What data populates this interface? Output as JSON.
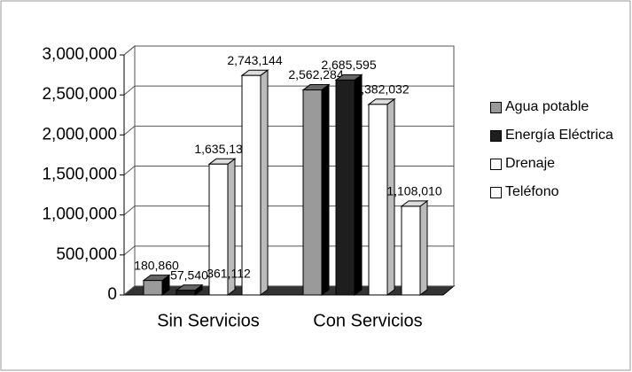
{
  "chart_data": {
    "type": "bar3d",
    "categories": [
      "Sin Servicios",
      "Con Servicios"
    ],
    "series": [
      {
        "name": "Agua potable",
        "color": "#9a9a9a",
        "values": [
          180860,
          2562284
        ],
        "value_labels": [
          "180,860",
          "2,562,284"
        ]
      },
      {
        "name": "Energía Eléctrica",
        "color": "#1e1e1e",
        "values": [
          57540,
          2685595
        ],
        "value_labels": [
          "57,540",
          "2,685,595"
        ]
      },
      {
        "name": "Drenaje",
        "color": "#ffffff",
        "values": [
          1635134,
          2382032
        ],
        "value_labels": [
          "1,635,134",
          "2,382,032"
        ]
      },
      {
        "name": "Teléfono",
        "color": "#ffffff",
        "values": [
          2743144,
          1108010
        ],
        "value_labels": [
          "2,743,144",
          "1,108,010"
        ]
      }
    ],
    "annotations": [
      "361,112"
    ],
    "ylim": [
      0,
      3000000
    ],
    "yticks": [
      0,
      {
        "value": 500000,
        "label": "500,000"
      },
      {
        "value": 1000000,
        "label": "1,000,000"
      },
      {
        "value": 1500000,
        "label": "1,500,000"
      },
      {
        "value": 2000000,
        "label": "2,000,000"
      },
      {
        "value": 2500000,
        "label": "2,500,000"
      },
      {
        "value": 3000000,
        "label": "3,000,000"
      }
    ],
    "grid": true
  }
}
